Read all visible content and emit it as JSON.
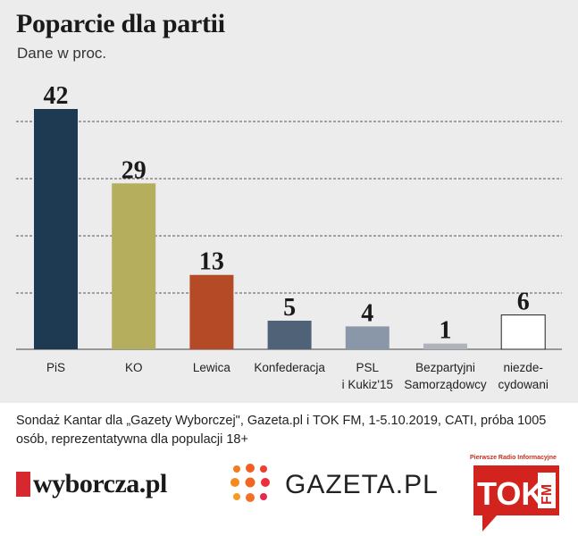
{
  "chart_data": {
    "type": "bar",
    "title": "Poparcie dla partii",
    "subtitle": "Dane w proc.",
    "categories": [
      "PiS",
      "KO",
      "Lewica",
      "Konfederacja",
      "PSL\ni Kukiz'15",
      "Bezpartyjni\nSamorządowcy",
      "niezde-\ncydowani"
    ],
    "values": [
      42,
      29,
      13,
      5,
      4,
      1,
      6
    ],
    "colors": [
      "#1e3a52",
      "#b5ae5c",
      "#b54a27",
      "#506278",
      "#8a97a8",
      "#b0b4ba",
      "#ffffff"
    ],
    "ylim": [
      0,
      42
    ],
    "grid": true
  },
  "source_text": "Sondaż Kantar dla „Gazety Wyborczej\", Gazeta.pl i TOK FM, 1-5.10.2019, CATI, próba 1005 osób, reprezentatywna dla populacji 18+",
  "logos": {
    "wyborcza": "wyborcza.pl",
    "gazeta": "GAZETA.PL",
    "tok_caption": "Pierwsze Radio Informacyjne",
    "tok_main": "TOK",
    "tok_fm": "FM"
  }
}
